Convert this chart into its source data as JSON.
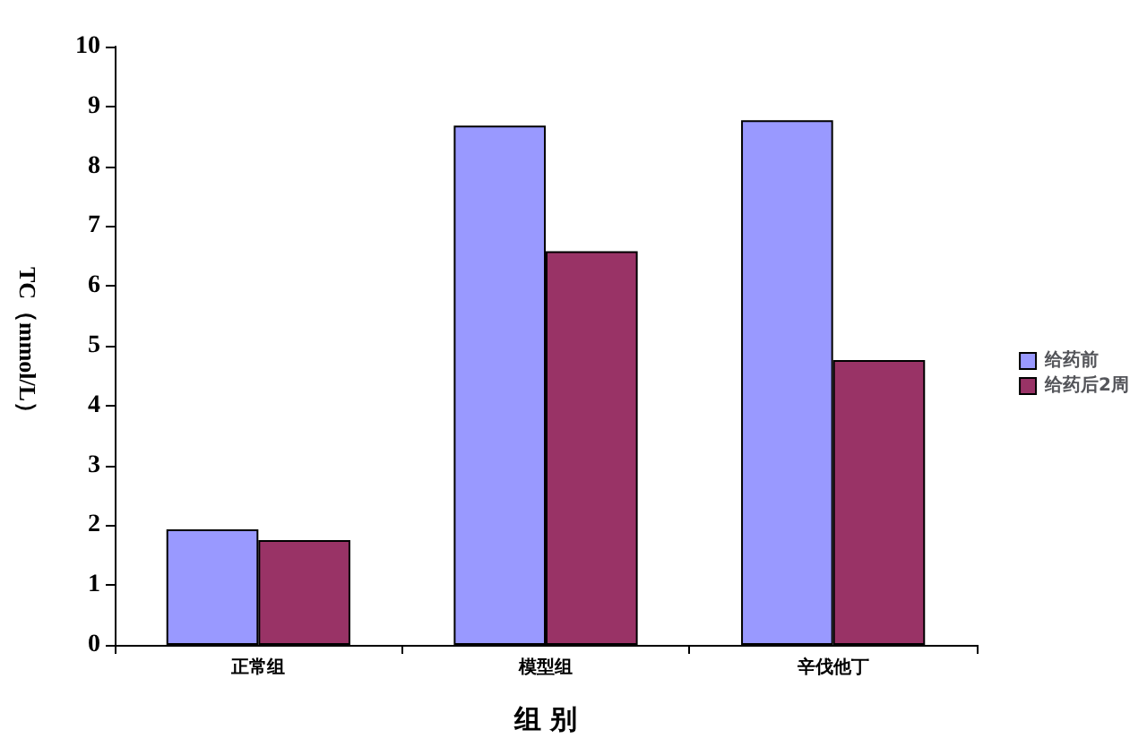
{
  "chart_data": {
    "type": "bar",
    "xlabel": "组 别",
    "ylabel": "TC（mmol/L）",
    "categories": [
      "正常组",
      "模型组",
      "辛伐他丁"
    ],
    "series": [
      {
        "name": "给药前",
        "color": "#9999ff",
        "values": [
          1.93,
          8.68,
          8.77
        ]
      },
      {
        "name": "给药后2周",
        "color": "#993366",
        "values": [
          1.75,
          6.58,
          4.76
        ]
      }
    ],
    "ylim": [
      0,
      10
    ],
    "yticks": [
      0,
      1,
      2,
      3,
      4,
      5,
      6,
      7,
      8,
      9,
      10
    ],
    "grid": false,
    "legend": "right"
  }
}
